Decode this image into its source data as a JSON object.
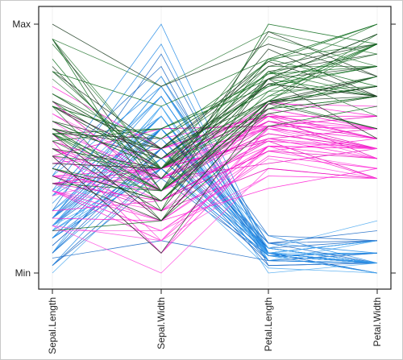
{
  "chart_data": {
    "type": "parallel-coordinates",
    "axes": [
      "Sepal.Length",
      "Sepal.Width",
      "Petal.Length",
      "Petal.Width"
    ],
    "y_tick_labels": [
      "Min",
      "Max"
    ],
    "ylim": [
      0,
      1
    ],
    "grid": false,
    "legend": "none",
    "colors": {
      "setosa": "#1e88e5",
      "versicolor": "#ff19d2",
      "virginica": "#0b6b1a",
      "virginica_dark": "#1a3a1f"
    },
    "series": [
      {
        "values": [
          [
            0.22,
            0.63,
            0.07,
            0.04
          ],
          [
            0.17,
            0.42,
            0.07,
            0.04
          ],
          [
            0.11,
            0.5,
            0.05,
            0.04
          ],
          [
            0.08,
            0.46,
            0.08,
            0.04
          ],
          [
            0.19,
            0.67,
            0.07,
            0.04
          ],
          [
            0.31,
            0.79,
            0.12,
            0.13
          ],
          [
            0.08,
            0.58,
            0.07,
            0.08
          ],
          [
            0.19,
            0.58,
            0.08,
            0.04
          ],
          [
            0.03,
            0.38,
            0.07,
            0.04
          ],
          [
            0.17,
            0.46,
            0.08,
            0.0
          ],
          [
            0.31,
            0.71,
            0.08,
            0.04
          ],
          [
            0.14,
            0.58,
            0.1,
            0.04
          ],
          [
            0.14,
            0.42,
            0.07,
            0.0
          ],
          [
            0.0,
            0.42,
            0.02,
            0.0
          ],
          [
            0.42,
            0.83,
            0.03,
            0.04
          ],
          [
            0.39,
            1.0,
            0.08,
            0.13
          ],
          [
            0.31,
            0.79,
            0.05,
            0.13
          ],
          [
            0.22,
            0.63,
            0.07,
            0.08
          ],
          [
            0.39,
            0.75,
            0.12,
            0.08
          ],
          [
            0.22,
            0.75,
            0.08,
            0.08
          ],
          [
            0.31,
            0.58,
            0.12,
            0.04
          ],
          [
            0.22,
            0.71,
            0.08,
            0.13
          ],
          [
            0.08,
            0.67,
            0.0,
            0.04
          ],
          [
            0.22,
            0.54,
            0.12,
            0.17
          ],
          [
            0.14,
            0.58,
            0.15,
            0.04
          ],
          [
            0.19,
            0.42,
            0.1,
            0.04
          ],
          [
            0.19,
            0.58,
            0.1,
            0.13
          ],
          [
            0.25,
            0.63,
            0.08,
            0.04
          ],
          [
            0.25,
            0.58,
            0.07,
            0.04
          ],
          [
            0.11,
            0.5,
            0.1,
            0.04
          ],
          [
            0.14,
            0.46,
            0.1,
            0.04
          ],
          [
            0.31,
            0.58,
            0.08,
            0.13
          ],
          [
            0.25,
            0.88,
            0.08,
            0.0
          ],
          [
            0.33,
            0.92,
            0.07,
            0.04
          ],
          [
            0.17,
            0.46,
            0.08,
            0.04
          ],
          [
            0.19,
            0.5,
            0.03,
            0.04
          ],
          [
            0.33,
            0.63,
            0.05,
            0.04
          ],
          [
            0.17,
            0.67,
            0.07,
            0.0
          ],
          [
            0.03,
            0.42,
            0.05,
            0.04
          ],
          [
            0.22,
            0.58,
            0.08,
            0.04
          ],
          [
            0.19,
            0.63,
            0.05,
            0.08
          ],
          [
            0.06,
            0.13,
            0.05,
            0.08
          ],
          [
            0.03,
            0.5,
            0.05,
            0.04
          ],
          [
            0.19,
            0.63,
            0.1,
            0.21
          ],
          [
            0.22,
            0.75,
            0.15,
            0.13
          ],
          [
            0.14,
            0.42,
            0.07,
            0.08
          ],
          [
            0.22,
            0.75,
            0.1,
            0.04
          ],
          [
            0.08,
            0.5,
            0.07,
            0.04
          ],
          [
            0.28,
            0.71,
            0.08,
            0.04
          ],
          [
            0.19,
            0.54,
            0.07,
            0.04
          ]
        ]
      },
      {
        "values": [
          [
            0.75,
            0.5,
            0.63,
            0.54
          ],
          [
            0.58,
            0.5,
            0.59,
            0.58
          ],
          [
            0.72,
            0.46,
            0.66,
            0.58
          ],
          [
            0.33,
            0.13,
            0.51,
            0.5
          ],
          [
            0.61,
            0.33,
            0.61,
            0.58
          ],
          [
            0.39,
            0.33,
            0.59,
            0.5
          ],
          [
            0.56,
            0.54,
            0.63,
            0.63
          ],
          [
            0.17,
            0.17,
            0.39,
            0.38
          ],
          [
            0.64,
            0.38,
            0.61,
            0.5
          ],
          [
            0.25,
            0.29,
            0.49,
            0.54
          ],
          [
            0.19,
            0.0,
            0.42,
            0.38
          ],
          [
            0.44,
            0.42,
            0.54,
            0.58
          ],
          [
            0.47,
            0.08,
            0.51,
            0.38
          ],
          [
            0.5,
            0.38,
            0.63,
            0.54
          ],
          [
            0.36,
            0.38,
            0.44,
            0.5
          ],
          [
            0.67,
            0.46,
            0.58,
            0.54
          ],
          [
            0.36,
            0.42,
            0.59,
            0.58
          ],
          [
            0.42,
            0.29,
            0.53,
            0.38
          ],
          [
            0.53,
            0.08,
            0.59,
            0.58
          ],
          [
            0.36,
            0.21,
            0.49,
            0.42
          ],
          [
            0.44,
            0.5,
            0.64,
            0.71
          ],
          [
            0.5,
            0.33,
            0.51,
            0.5
          ],
          [
            0.56,
            0.21,
            0.66,
            0.58
          ],
          [
            0.5,
            0.33,
            0.63,
            0.46
          ],
          [
            0.58,
            0.38,
            0.56,
            0.5
          ],
          [
            0.64,
            0.42,
            0.58,
            0.54
          ],
          [
            0.69,
            0.33,
            0.64,
            0.54
          ],
          [
            0.67,
            0.42,
            0.68,
            0.67
          ],
          [
            0.47,
            0.38,
            0.59,
            0.58
          ],
          [
            0.39,
            0.25,
            0.42,
            0.38
          ],
          [
            0.33,
            0.17,
            0.47,
            0.42
          ],
          [
            0.33,
            0.17,
            0.46,
            0.38
          ],
          [
            0.42,
            0.29,
            0.49,
            0.46
          ],
          [
            0.47,
            0.29,
            0.69,
            0.63
          ],
          [
            0.31,
            0.42,
            0.59,
            0.58
          ],
          [
            0.47,
            0.58,
            0.59,
            0.63
          ],
          [
            0.67,
            0.46,
            0.63,
            0.58
          ],
          [
            0.56,
            0.13,
            0.58,
            0.5
          ],
          [
            0.36,
            0.42,
            0.53,
            0.5
          ],
          [
            0.33,
            0.21,
            0.51,
            0.5
          ],
          [
            0.33,
            0.25,
            0.58,
            0.46
          ],
          [
            0.5,
            0.42,
            0.61,
            0.54
          ],
          [
            0.42,
            0.25,
            0.51,
            0.46
          ],
          [
            0.19,
            0.13,
            0.39,
            0.38
          ],
          [
            0.36,
            0.29,
            0.54,
            0.5
          ],
          [
            0.39,
            0.42,
            0.54,
            0.46
          ],
          [
            0.39,
            0.38,
            0.54,
            0.5
          ],
          [
            0.53,
            0.38,
            0.56,
            0.5
          ],
          [
            0.22,
            0.21,
            0.34,
            0.42
          ],
          [
            0.39,
            0.33,
            0.53,
            0.5
          ]
        ]
      },
      {
        "values": [
          [
            0.56,
            0.54,
            0.85,
            1.0
          ],
          [
            0.42,
            0.29,
            0.69,
            0.75
          ],
          [
            0.78,
            0.42,
            0.83,
            0.83
          ],
          [
            0.56,
            0.38,
            0.78,
            0.71
          ],
          [
            0.61,
            0.42,
            0.81,
            0.88
          ],
          [
            0.92,
            0.42,
            0.95,
            0.83
          ],
          [
            0.17,
            0.21,
            0.59,
            0.67
          ],
          [
            0.83,
            0.38,
            0.9,
            0.71
          ],
          [
            0.67,
            0.21,
            0.81,
            0.71
          ],
          [
            0.81,
            0.67,
            0.86,
            1.0
          ],
          [
            0.61,
            0.5,
            0.69,
            0.79
          ],
          [
            0.58,
            0.29,
            0.73,
            0.75
          ],
          [
            0.69,
            0.42,
            0.76,
            0.83
          ],
          [
            0.39,
            0.21,
            0.68,
            0.79
          ],
          [
            0.42,
            0.33,
            0.69,
            0.96
          ],
          [
            0.58,
            0.5,
            0.73,
            0.92
          ],
          [
            0.61,
            0.42,
            0.76,
            0.71
          ],
          [
            0.94,
            0.75,
            0.97,
            0.88
          ],
          [
            0.94,
            0.25,
            1.0,
            0.92
          ],
          [
            0.47,
            0.08,
            0.68,
            0.58
          ],
          [
            0.72,
            0.5,
            0.8,
            0.92
          ],
          [
            0.36,
            0.33,
            0.66,
            0.79
          ],
          [
            0.94,
            0.33,
            0.97,
            0.79
          ],
          [
            0.56,
            0.29,
            0.66,
            0.71
          ],
          [
            0.67,
            0.54,
            0.8,
            0.83
          ],
          [
            0.81,
            0.5,
            0.85,
            0.71
          ],
          [
            0.53,
            0.33,
            0.64,
            0.71
          ],
          [
            0.5,
            0.42,
            0.66,
            0.71
          ],
          [
            0.58,
            0.33,
            0.78,
            0.83
          ],
          [
            0.81,
            0.42,
            0.81,
            0.63
          ],
          [
            0.86,
            0.33,
            0.86,
            0.75
          ],
          [
            1.0,
            0.75,
            0.92,
            0.79
          ],
          [
            0.58,
            0.33,
            0.78,
            0.88
          ],
          [
            0.56,
            0.33,
            0.69,
            0.58
          ],
          [
            0.5,
            0.25,
            0.78,
            0.54
          ],
          [
            0.94,
            0.42,
            0.86,
            0.92
          ],
          [
            0.56,
            0.58,
            0.78,
            0.96
          ],
          [
            0.58,
            0.46,
            0.76,
            0.71
          ],
          [
            0.47,
            0.42,
            0.64,
            0.71
          ],
          [
            0.72,
            0.46,
            0.75,
            0.83
          ],
          [
            0.67,
            0.46,
            0.78,
            0.96
          ],
          [
            0.72,
            0.46,
            0.69,
            0.92
          ],
          [
            0.42,
            0.29,
            0.69,
            0.75
          ],
          [
            0.69,
            0.5,
            0.83,
            0.92
          ],
          [
            0.67,
            0.54,
            0.8,
            1.0
          ],
          [
            0.67,
            0.42,
            0.71,
            0.92
          ],
          [
            0.56,
            0.21,
            0.68,
            0.75
          ],
          [
            0.61,
            0.42,
            0.71,
            0.79
          ],
          [
            0.53,
            0.58,
            0.75,
            0.92
          ],
          [
            0.44,
            0.42,
            0.69,
            0.71
          ]
        ]
      }
    ]
  }
}
